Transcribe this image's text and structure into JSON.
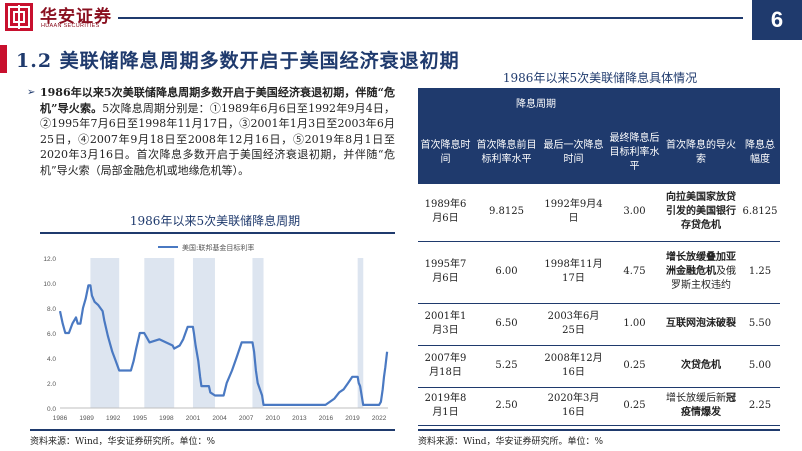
{
  "header": {
    "brand_cn": "华安证券",
    "brand_en": "HUAAN SECURITIES",
    "page_number": "6",
    "accent_color": "#c8102e",
    "primary_color": "#1f3a6d"
  },
  "title": "1.2 美联储降息周期多数开启于美国经济衰退初期",
  "bullet": {
    "bold_lead": "1986年以来5次美联储降息周期多数开启于美国经济衰退初期，伴随“危机”导火索。",
    "body": "5次降息周期分别是：①1989年6月6日至1992年9月4日，②1995年7月6日至1998年11月17日，③2001年1月3日至2003年6月25日，④2007年9月18日至2008年12月16日，⑤2019年8月1日至2020年3月16日。首次降息多数开启于美国经济衰退初期，并伴随“危机”导火索（局部金融危机或地缘危机等）。"
  },
  "left_chart": {
    "title": "1986年以来5次美联储降息周期",
    "source": "资料来源：Wind，华安证券研究所。单位：%"
  },
  "chart_data": {
    "type": "line",
    "title": "1986年以来5次美联储降息周期",
    "series": [
      {
        "name": "美国:联邦基金目标利率",
        "color": "#4a79c2",
        "points": [
          [
            1986.0,
            7.75
          ],
          [
            1986.3,
            6.75
          ],
          [
            1986.6,
            6.0
          ],
          [
            1987.0,
            6.0
          ],
          [
            1987.4,
            6.75
          ],
          [
            1987.8,
            7.25
          ],
          [
            1988.0,
            6.75
          ],
          [
            1988.3,
            6.75
          ],
          [
            1988.6,
            8.0
          ],
          [
            1988.9,
            8.75
          ],
          [
            1989.2,
            9.8125
          ],
          [
            1989.43,
            9.8125
          ],
          [
            1989.6,
            9.0
          ],
          [
            1989.9,
            8.5
          ],
          [
            1990.3,
            8.25
          ],
          [
            1990.8,
            7.75
          ],
          [
            1991.0,
            7.0
          ],
          [
            1991.4,
            5.75
          ],
          [
            1991.9,
            4.5
          ],
          [
            1992.3,
            3.75
          ],
          [
            1992.68,
            3.0
          ],
          [
            1993.5,
            3.0
          ],
          [
            1994.0,
            3.0
          ],
          [
            1994.3,
            3.75
          ],
          [
            1994.6,
            4.75
          ],
          [
            1995.0,
            6.0
          ],
          [
            1995.5,
            6.0
          ],
          [
            1995.9,
            5.5
          ],
          [
            1996.1,
            5.25
          ],
          [
            1997.2,
            5.5
          ],
          [
            1998.7,
            5.0
          ],
          [
            1998.88,
            4.75
          ],
          [
            1999.5,
            5.0
          ],
          [
            1999.9,
            5.5
          ],
          [
            2000.4,
            6.5
          ],
          [
            2000.99,
            6.5
          ],
          [
            2001.1,
            6.0
          ],
          [
            2001.3,
            5.0
          ],
          [
            2001.6,
            3.75
          ],
          [
            2001.8,
            2.5
          ],
          [
            2001.95,
            1.75
          ],
          [
            2002.8,
            1.75
          ],
          [
            2002.95,
            1.25
          ],
          [
            2003.48,
            1.0
          ],
          [
            2004.45,
            1.0
          ],
          [
            2004.8,
            2.0
          ],
          [
            2005.4,
            3.0
          ],
          [
            2005.9,
            4.0
          ],
          [
            2006.5,
            5.25
          ],
          [
            2007.71,
            5.25
          ],
          [
            2007.9,
            4.5
          ],
          [
            2008.1,
            3.0
          ],
          [
            2008.3,
            2.0
          ],
          [
            2008.8,
            1.0
          ],
          [
            2008.96,
            0.25
          ],
          [
            2015.95,
            0.25
          ],
          [
            2016.95,
            0.75
          ],
          [
            2017.5,
            1.25
          ],
          [
            2018.0,
            1.5
          ],
          [
            2018.5,
            2.0
          ],
          [
            2018.97,
            2.5
          ],
          [
            2019.58,
            2.5
          ],
          [
            2019.7,
            2.0
          ],
          [
            2019.85,
            1.75
          ],
          [
            2020.2,
            0.25
          ],
          [
            2022.0,
            0.25
          ],
          [
            2022.2,
            0.5
          ],
          [
            2022.4,
            1.5
          ],
          [
            2022.55,
            2.5
          ],
          [
            2022.7,
            3.25
          ],
          [
            2022.9,
            4.5
          ]
        ]
      }
    ],
    "shaded_periods": [
      [
        1989.43,
        1992.68
      ],
      [
        1995.51,
        1998.88
      ],
      [
        2001.0,
        2003.48
      ],
      [
        2007.71,
        2008.96
      ],
      [
        2019.58,
        2020.21
      ]
    ],
    "shade_color": "#dde5f0",
    "x_ticks": [
      "1986",
      "1989",
      "1992",
      "1995",
      "1998",
      "2001",
      "2004",
      "2007",
      "2010",
      "2013",
      "2016",
      "2019",
      "2022"
    ],
    "xlim": [
      1986,
      2023
    ],
    "ylim": [
      0,
      12
    ],
    "y_ticks": [
      "0.0",
      "2.0",
      "4.0",
      "6.0",
      "8.0",
      "10.0",
      "12.0"
    ],
    "legend_position": "top-center",
    "grid": false
  },
  "table": {
    "title": "1986年以来5次美联储降息具体情况",
    "group_header": "降息周期",
    "headers": [
      "首次降息时间",
      "首次降息前目标利率水平",
      "最后一次降息时间",
      "最终降息后目标利率水平",
      "首次降息的导火索",
      "降息总幅度"
    ],
    "rows": [
      {
        "start": "1989年6月6日",
        "rate_before": "9.8125",
        "end": "1992年9月4日",
        "rate_after": "3.00",
        "trigger": "向拉美国家放贷引发的美国银行存贷危机",
        "trigger_light": "",
        "total": "6.8125"
      },
      {
        "start": "1995年7月6日",
        "rate_before": "6.00",
        "end": "1998年11月17日",
        "rate_after": "4.75",
        "trigger": "增长放缓叠加亚洲金融危机",
        "trigger_light": "及俄罗斯主权违约",
        "total": "1.25"
      },
      {
        "start": "2001年1月3日",
        "rate_before": "6.50",
        "end": "2003年6月25日",
        "rate_after": "1.00",
        "trigger": "互联网泡沫破裂",
        "trigger_light": "",
        "total": "5.50"
      },
      {
        "start": "2007年9月18日",
        "rate_before": "5.25",
        "end": "2008年12月16日",
        "rate_after": "0.25",
        "trigger": "次贷危机",
        "trigger_light": "",
        "total": "5.00"
      },
      {
        "start": "2019年8月1日",
        "rate_before": "2.50",
        "end": "2020年3月16日",
        "rate_after": "0.25",
        "trigger": "冠疫情爆发",
        "trigger_light": "增长放缓后新",
        "total": "2.25"
      }
    ],
    "source": "资料来源：Wind，华安证券研究所。单位：%"
  }
}
